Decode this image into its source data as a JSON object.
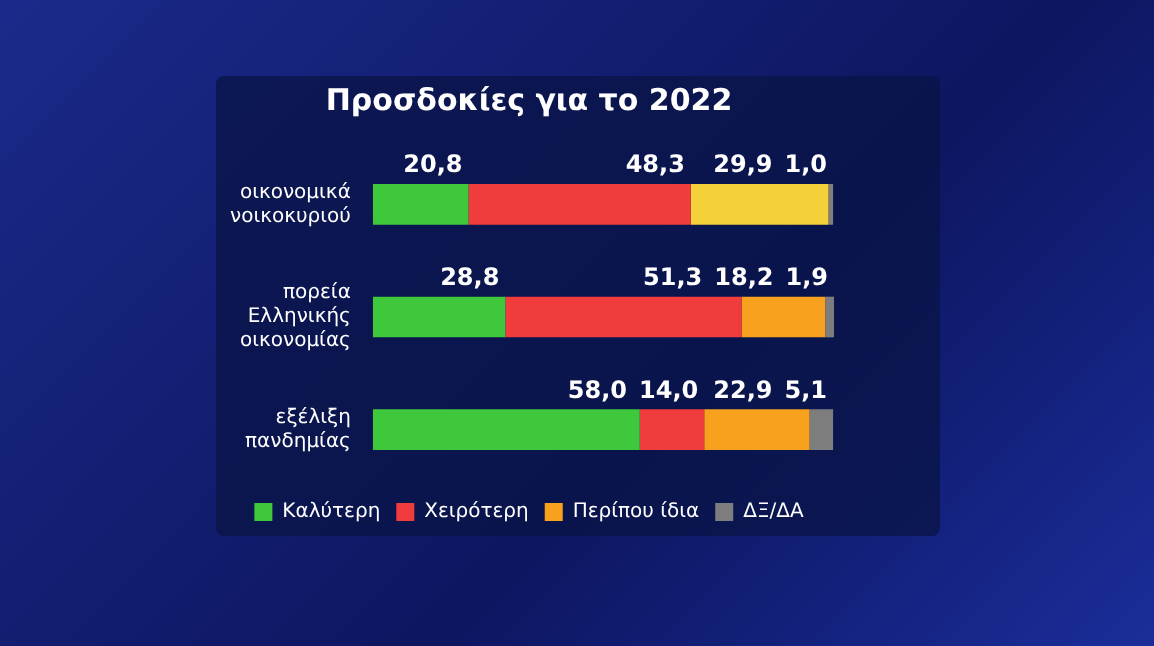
{
  "chart_data": {
    "type": "bar",
    "orientation": "horizontal",
    "stacked": true,
    "title": "Προσδοκίες για το 2022",
    "categories": [
      "οικονομικά\nνοικοκυριού",
      "πορεία\nΕλληνικής\nοικονομίας",
      "εξέλιξη\nπανδημίας"
    ],
    "series": [
      {
        "name": "Καλύτερη",
        "color": "#3fc83c",
        "values": [
          20.8,
          28.8,
          58.0
        ],
        "value_labels": [
          "20,8",
          "28,8",
          "58,0"
        ]
      },
      {
        "name": "Χειρότερη",
        "color": "#f03c3c",
        "values": [
          48.3,
          51.3,
          14.0
        ],
        "value_labels": [
          "48,3",
          "51,3",
          "14,0"
        ]
      },
      {
        "name": "Περίπου ίδια",
        "color": "#f7a11f",
        "colors": [
          "#f4d13a",
          "#f7a11f",
          "#f7a11f"
        ],
        "values": [
          29.9,
          18.2,
          22.9
        ],
        "value_labels": [
          "29,9",
          "18,2",
          "22,9"
        ]
      },
      {
        "name": "ΔΞ/ΔΑ",
        "color": "#7d7d7d",
        "values": [
          1.0,
          1.9,
          5.1
        ],
        "value_labels": [
          "1,0",
          "1,9",
          "5,1"
        ]
      }
    ],
    "legend": "bottom",
    "tick_labels": "y"
  }
}
